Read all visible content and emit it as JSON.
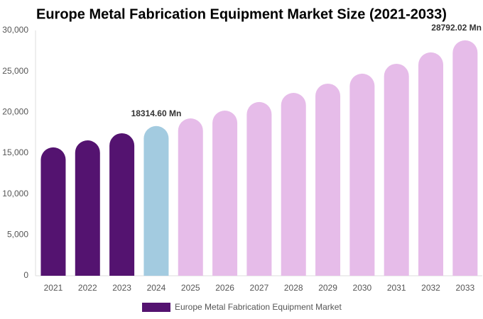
{
  "chart_data": {
    "type": "bar",
    "title": "Europe Metal Fabrication Equipment Market Size (2021-2033)",
    "categories": [
      "2021",
      "2022",
      "2023",
      "2024",
      "2025",
      "2026",
      "2027",
      "2028",
      "2029",
      "2030",
      "2031",
      "2032",
      "2033"
    ],
    "series": [
      {
        "name": "Europe Metal Fabrication Equipment Market",
        "color": "#541370",
        "colors": [
          "#541370",
          "#541370",
          "#541370",
          "#a3cbe0",
          "#e6bce9",
          "#e6bce9",
          "#e6bce9",
          "#e6bce9",
          "#e6bce9",
          "#e6bce9",
          "#e6bce9",
          "#e6bce9",
          "#e6bce9"
        ],
        "values": [
          15700,
          16560,
          17430,
          18314.6,
          19250,
          20200,
          21250,
          22370,
          23500,
          24720,
          25930,
          27320,
          28792.02
        ],
        "value_labels": [
          null,
          null,
          null,
          "18314.60 Mn",
          null,
          null,
          null,
          null,
          null,
          null,
          null,
          null,
          "28792.02 Mn"
        ]
      }
    ],
    "ylim": [
      0,
      30000
    ],
    "yticks": [
      0,
      {
        "value": 5000,
        "label": "5,000"
      },
      {
        "value": 10000,
        "label": "10,000"
      },
      {
        "value": 15000,
        "label": "15,000"
      },
      {
        "value": 20000,
        "label": "20,000"
      },
      {
        "value": 25000,
        "label": "25,000"
      },
      {
        "value": 30000,
        "label": "30,000"
      }
    ],
    "grid": false
  }
}
